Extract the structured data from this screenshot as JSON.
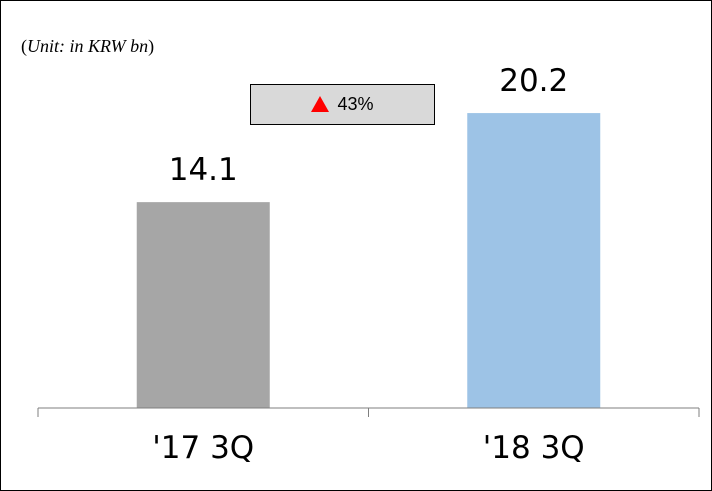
{
  "unit_label": {
    "open_paren": "(",
    "text": "Unit: in KRW bn",
    "close_paren": ")"
  },
  "change_badge": {
    "icon": "up-triangle-icon",
    "icon_color": "#ff0000",
    "text": "43%",
    "background": "#d9d9d9"
  },
  "chart_data": {
    "type": "bar",
    "categories": [
      "'17 3Q",
      "'18 3Q"
    ],
    "values": [
      14.1,
      20.2
    ],
    "value_labels": [
      "14.1",
      "20.2"
    ],
    "colors": [
      "#a6a6a6",
      "#9dc3e6"
    ],
    "ylim": [
      0,
      25
    ],
    "grid": false,
    "legend": "none"
  }
}
